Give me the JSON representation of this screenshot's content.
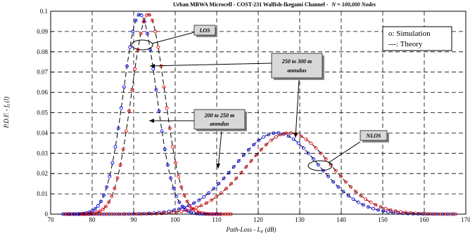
{
  "chart_data": {
    "type": "line",
    "title_main": "Urban MBWA Microcell - COST-231 Walfish-Ikegami Channel -",
    "title_italic": "N = 100,000 Nodes",
    "xlabel": "Path-Loss - L",
    "xlabel_sub": "P",
    "xlabel_unit": " (dB)",
    "ylabel": "P.D.F. - f",
    "ylabel_sub": "L",
    "ylabel_arg": "(l)",
    "xlim": [
      70,
      170
    ],
    "ylim": [
      0,
      0.1
    ],
    "x_ticks": [
      70,
      80,
      90,
      100,
      110,
      120,
      130,
      140,
      150,
      160,
      170
    ],
    "y_ticks": [
      "0",
      "0.01",
      "0.02",
      "0.03",
      "0.04",
      "0.05",
      "0.06",
      "0.07",
      "0.08",
      "0.09",
      "0.1"
    ],
    "grid": true,
    "legend_position": "top-right",
    "legend": [
      "o: Simulation",
      "---: Theory"
    ],
    "annotations": {
      "los": "LOS",
      "nlos": "NLOS",
      "a250_l1": "250 to 300 m",
      "a250_l2": "annulus",
      "a200_l1": "200 to 250 m",
      "a200_l2": "annulus"
    },
    "series": [
      {
        "group": "LOS",
        "ring": "200 to 250 m",
        "color": "#0000ff",
        "mean": 91.5,
        "std": 4.0,
        "peak": 0.0985
      },
      {
        "group": "LOS",
        "ring": "250 to 300 m",
        "color": "#ff0000",
        "mean": 93.5,
        "std": 4.0,
        "peak": 0.0985
      },
      {
        "group": "NLOS",
        "ring": "200 to 250 m",
        "color": "#0000ff",
        "mean": 124.5,
        "std": 10.0,
        "peak": 0.04
      },
      {
        "group": "NLOS",
        "ring": "250 to 300 m",
        "color": "#ff0000",
        "mean": 127.5,
        "std": 10.0,
        "peak": 0.04
      }
    ]
  }
}
